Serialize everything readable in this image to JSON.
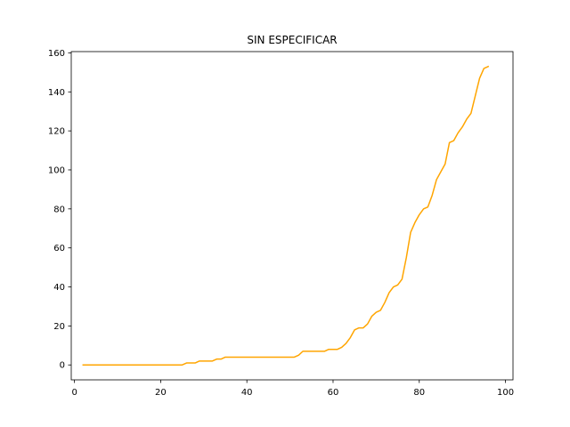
{
  "chart_data": {
    "type": "line",
    "title": "SIN ESPECIFICAR",
    "xlabel": "",
    "ylabel": "",
    "xlim": [
      -0.75,
      101.75
    ],
    "ylim": [
      -7.65,
      160.65
    ],
    "xticks": [
      0,
      20,
      40,
      60,
      80,
      100
    ],
    "yticks": [
      0,
      20,
      40,
      60,
      80,
      100,
      120,
      140,
      160
    ],
    "grid": false,
    "legend": "none",
    "series": [
      {
        "color": "#ffa500",
        "points": [
          [
            2,
            0
          ],
          [
            25,
            0
          ],
          [
            26,
            1
          ],
          [
            28,
            1
          ],
          [
            29,
            2
          ],
          [
            31,
            2
          ],
          [
            32,
            2
          ],
          [
            33,
            3
          ],
          [
            34,
            3
          ],
          [
            35,
            4
          ],
          [
            51,
            4
          ],
          [
            52,
            5
          ],
          [
            53,
            7
          ],
          [
            58,
            7
          ],
          [
            59,
            8
          ],
          [
            61,
            8
          ],
          [
            62,
            9
          ],
          [
            63,
            11
          ],
          [
            64,
            14
          ],
          [
            65,
            18
          ],
          [
            66,
            19
          ],
          [
            67,
            19
          ],
          [
            68,
            21
          ],
          [
            69,
            25
          ],
          [
            70,
            27
          ],
          [
            71,
            28
          ],
          [
            72,
            32
          ],
          [
            73,
            37
          ],
          [
            74,
            40
          ],
          [
            75,
            41
          ],
          [
            76,
            44
          ],
          [
            77,
            55
          ],
          [
            78,
            68
          ],
          [
            79,
            73
          ],
          [
            80,
            77
          ],
          [
            81,
            80
          ],
          [
            82,
            81
          ],
          [
            83,
            87
          ],
          [
            84,
            95
          ],
          [
            85,
            99
          ],
          [
            86,
            103
          ],
          [
            87,
            114
          ],
          [
            88,
            115
          ],
          [
            89,
            119
          ],
          [
            90,
            122
          ],
          [
            91,
            126
          ],
          [
            92,
            129
          ],
          [
            93,
            138
          ],
          [
            94,
            147
          ],
          [
            95,
            152
          ],
          [
            96,
            153
          ]
        ]
      }
    ]
  }
}
